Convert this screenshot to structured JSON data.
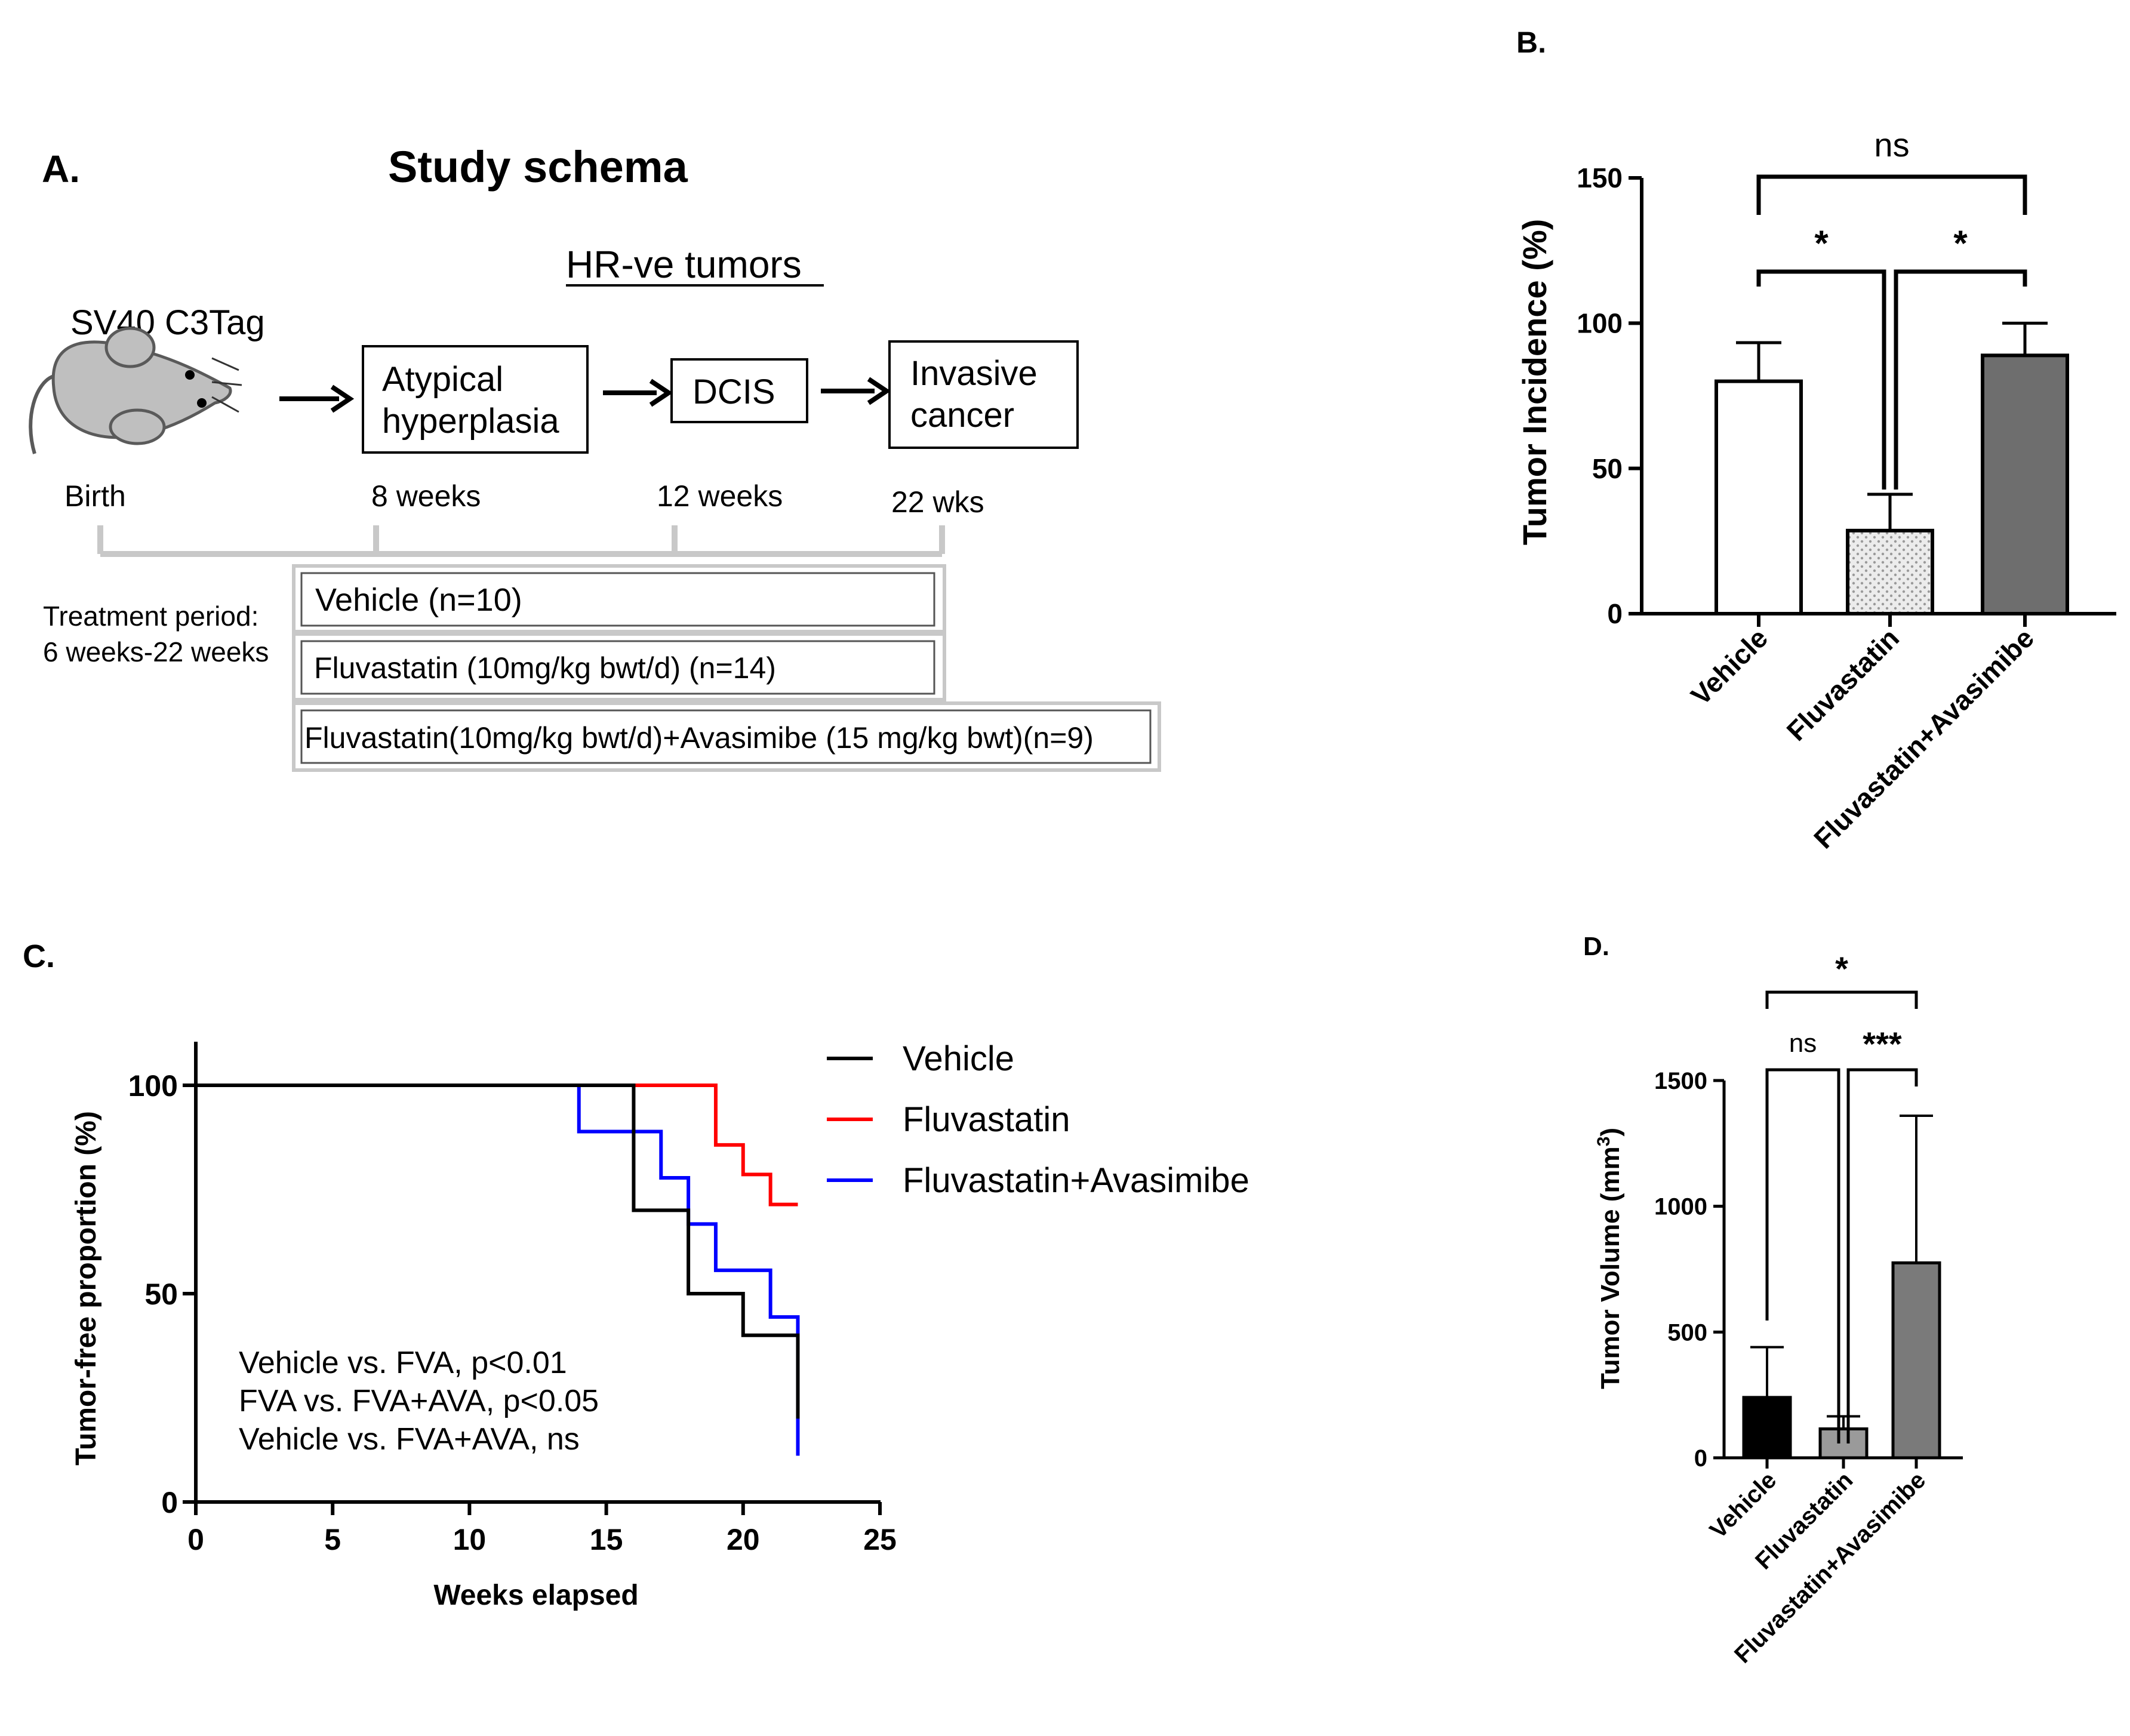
{
  "panel_a": {
    "label": "A.",
    "title": "Study schema",
    "subtitle": "HR-ve tumors",
    "mouse_label": "SV40 C3Tag",
    "stages": [
      "Atypical hyperplasia",
      "DCIS",
      "Invasive cancer"
    ],
    "stage_lines": [
      [
        "Atypical",
        "hyperplasia"
      ],
      [
        "DCIS"
      ],
      [
        "Invasive",
        "cancer"
      ]
    ],
    "timepoints": [
      "Birth",
      "8 weeks",
      "12 weeks",
      "22 wks"
    ],
    "treatment_period": [
      "Treatment period:",
      "6 weeks-22 weeks"
    ],
    "groups": [
      "Vehicle (n=10)",
      "Fluvastatin (10mg/kg bwt/d) (n=14)",
      "Fluvastatin(10mg/kg bwt/d)+Avasimibe (15 mg/kg bwt)(n=9)"
    ]
  },
  "chart_data": [
    {
      "panel": "B.",
      "type": "bar",
      "ylabel": "Tumor Incidence (%)",
      "categories": [
        "Vehicle",
        "Fluvastatin",
        "Fluvastatin+Avasimibe"
      ],
      "values": [
        80,
        28.6,
        88.9
      ],
      "errors": [
        13.3,
        12.5,
        11.1
      ],
      "ylim": [
        0,
        150
      ],
      "yticks": [
        "0",
        "50",
        "100",
        "150"
      ],
      "colors": [
        "#ffffff",
        "#d9d9d9",
        "#6e6e6e"
      ],
      "significance": [
        {
          "pair": [
            "Vehicle",
            "Fluvastatin+Avasimibe"
          ],
          "label": "ns"
        },
        {
          "pair": [
            "Vehicle",
            "Fluvastatin"
          ],
          "label": "*"
        },
        {
          "pair": [
            "Fluvastatin",
            "Fluvastatin+Avasimibe"
          ],
          "label": "*"
        }
      ]
    },
    {
      "panel": "C.",
      "type": "line",
      "subtype": "step",
      "xlabel": "Weeks elapsed",
      "ylabel": "Tumor-free proportion (%)",
      "xlim": [
        0,
        25
      ],
      "ylim": [
        0,
        110
      ],
      "xticks": [
        "0",
        "5",
        "10",
        "15",
        "20",
        "25"
      ],
      "yticks": [
        "0",
        "50",
        "100"
      ],
      "legend_position": "top-right",
      "series": [
        {
          "name": "Vehicle",
          "color": "#000000",
          "x": [
            0,
            16,
            18,
            20,
            22,
            22
          ],
          "y": [
            100,
            70,
            50,
            40,
            40,
            20
          ]
        },
        {
          "name": "Fluvastatin",
          "color": "#ff0000",
          "x": [
            0,
            19,
            20,
            21,
            22
          ],
          "y": [
            100,
            85.7,
            78.6,
            71.4,
            71.4
          ]
        },
        {
          "name": "Fluvastatin+Avasimibe",
          "color": "#0000ff",
          "x": [
            0,
            14,
            16,
            17,
            18,
            19,
            21,
            22,
            22
          ],
          "y": [
            100,
            88.9,
            88.9,
            77.8,
            66.7,
            55.6,
            44.4,
            44.4,
            11.1
          ]
        }
      ],
      "annotations": [
        "Vehicle vs. FVA, p<0.01",
        "FVA vs. FVA+AVA, p<0.05",
        "Vehicle vs. FVA+AVA, ns"
      ]
    },
    {
      "panel": "D.",
      "type": "bar",
      "ylabel": "Tumor Volume (mm",
      "ylabel_superscript": "3",
      "ylabel_suffix": ")",
      "categories": [
        "Vehicle",
        "Fluvastatin",
        "Fluvastatin+Avasimibe"
      ],
      "values": [
        240,
        115,
        775
      ],
      "errors": [
        200,
        50,
        585
      ],
      "ylim": [
        0,
        1500
      ],
      "yticks": [
        "0",
        "500",
        "1000",
        "1500"
      ],
      "colors": [
        "#000000",
        "#9a9a9a",
        "#7a7a7a"
      ],
      "significance": [
        {
          "pair": [
            "Vehicle",
            "Fluvastatin+Avasimibe"
          ],
          "label": "*"
        },
        {
          "pair": [
            "Vehicle",
            "Fluvastatin"
          ],
          "label": "ns"
        },
        {
          "pair": [
            "Fluvastatin",
            "Fluvastatin+Avasimibe"
          ],
          "label": "***"
        }
      ]
    }
  ]
}
